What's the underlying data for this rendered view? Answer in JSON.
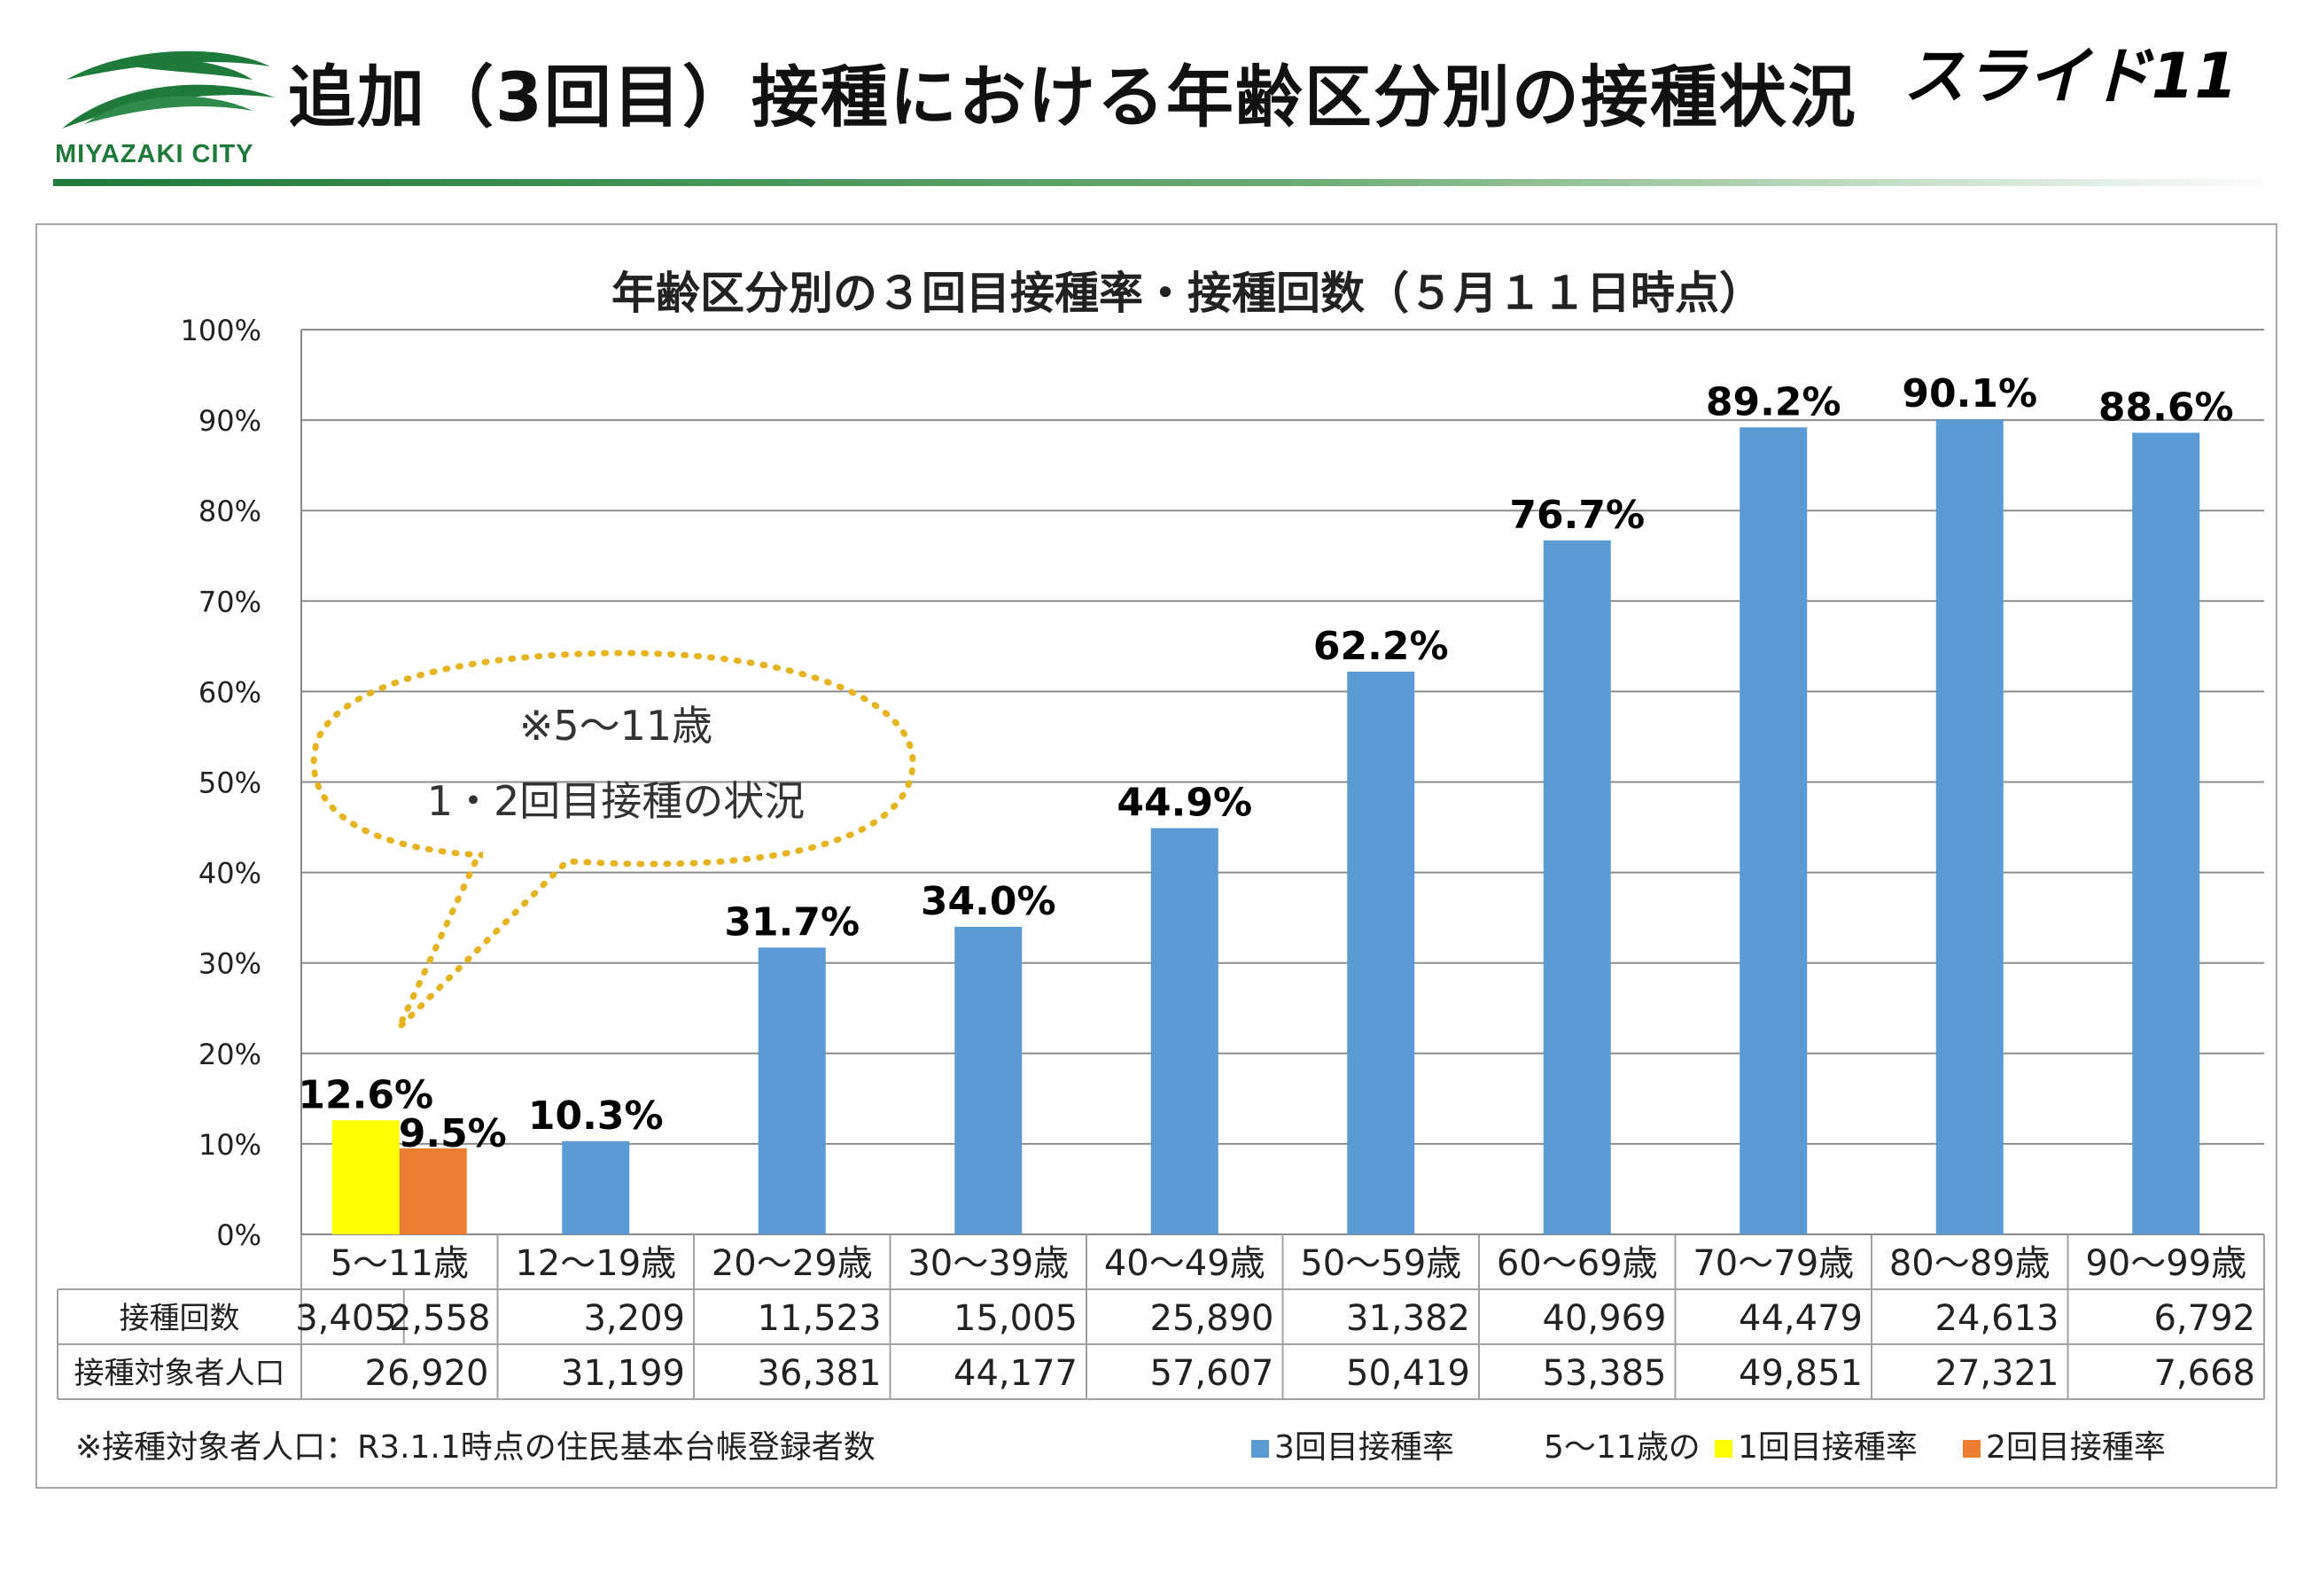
{
  "header": {
    "logo_text": "MIYAZAKI CITY",
    "title": "追加（3回目）接種における年齢区分別の接種状況",
    "slide_number": "スライド11"
  },
  "colors": {
    "third_dose": "#5b9bd5",
    "first_dose": "#ffff00",
    "second_dose": "#ed7d31",
    "brand_green": "#1e7a3a",
    "callout_border": "#e6b422"
  },
  "chart_data": {
    "type": "bar",
    "title": "年齢区分別の３回目接種率・接種回数（５月１１日時点）",
    "ylim": [
      0,
      100
    ],
    "y_ticks": [
      "0%",
      "10%",
      "20%",
      "30%",
      "40%",
      "50%",
      "60%",
      "70%",
      "80%",
      "90%",
      "100%"
    ],
    "grid": true,
    "categories": [
      "5～11歳",
      "12～19歳",
      "20～29歳",
      "30～39歳",
      "40～49歳",
      "50～59歳",
      "60～69歳",
      "70～79歳",
      "80～89歳",
      "90～99歳"
    ],
    "series": [
      {
        "name": "3回目接種率",
        "values": [
          null,
          10.3,
          31.7,
          34.0,
          44.9,
          62.2,
          76.7,
          89.2,
          90.1,
          88.6
        ],
        "labels": [
          null,
          "10.3%",
          "31.7%",
          "34.0%",
          "44.9%",
          "62.2%",
          "76.7%",
          "89.2%",
          "90.1%",
          "88.6%"
        ]
      },
      {
        "name": "1回目接種率",
        "values": [
          12.6,
          null,
          null,
          null,
          null,
          null,
          null,
          null,
          null,
          null
        ],
        "labels": [
          "12.6%",
          null,
          null,
          null,
          null,
          null,
          null,
          null,
          null,
          null
        ]
      },
      {
        "name": "2回目接種率",
        "values": [
          9.5,
          null,
          null,
          null,
          null,
          null,
          null,
          null,
          null,
          null
        ],
        "labels": [
          "9.5%",
          null,
          null,
          null,
          null,
          null,
          null,
          null,
          null,
          null
        ]
      }
    ],
    "table": {
      "rows": [
        {
          "label": "接種回数",
          "cells": [
            [
              "3,405",
              "2,558"
            ],
            "3,209",
            "11,523",
            "15,005",
            "25,890",
            "31,382",
            "40,969",
            "44,479",
            "24,613",
            "6,792"
          ]
        },
        {
          "label": "接種対象者人口",
          "cells": [
            "26,920",
            "31,199",
            "36,381",
            "44,177",
            "57,607",
            "50,419",
            "53,385",
            "49,851",
            "27,321",
            "7,668"
          ]
        }
      ]
    },
    "callout": {
      "line1": "※5～11歳",
      "line2": "1・2回目接種の状況"
    }
  },
  "footer": {
    "note": "※接種対象者人口：R3.1.1時点の住民基本台帳登録者数",
    "legend_third": "3回目接種率",
    "legend_prefix": "5～11歳の",
    "legend_first": "1回目接種率",
    "legend_second": "2回目接種率"
  }
}
